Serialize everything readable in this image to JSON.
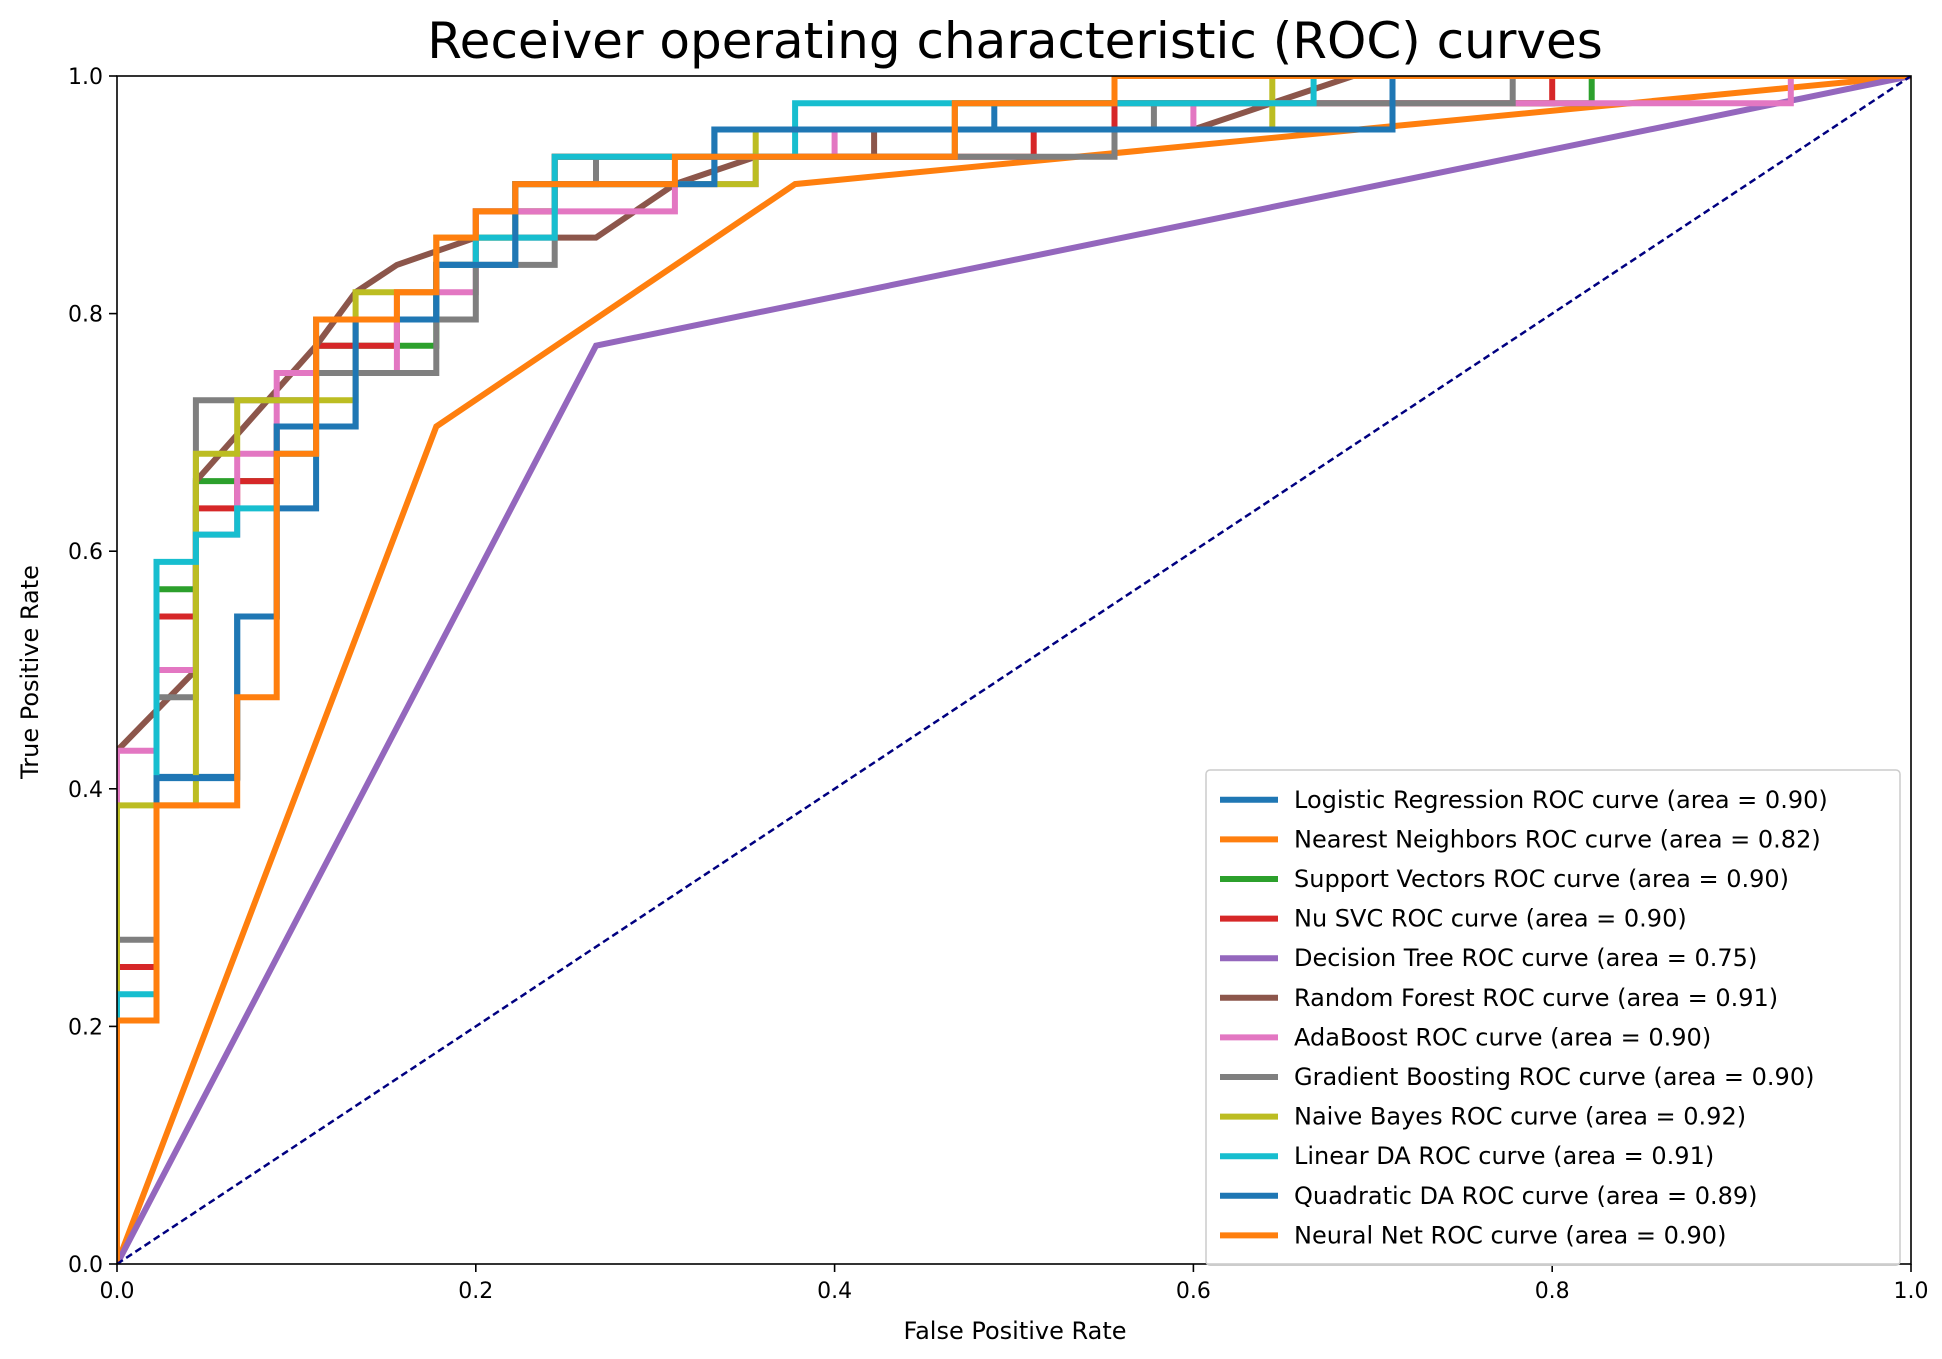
{
  "chart_data": {
    "type": "line",
    "title": "Receiver operating characteristic (ROC) curves",
    "xlabel": "False Positive Rate",
    "ylabel": "True Positive Rate",
    "xlim": [
      0.0,
      1.0
    ],
    "ylim": [
      0.0,
      1.0
    ],
    "xticks": [
      "0.0",
      "0.2",
      "0.4",
      "0.6",
      "0.8",
      "1.0"
    ],
    "yticks": [
      "0.0",
      "0.2",
      "0.4",
      "0.6",
      "0.8",
      "1.0"
    ],
    "grid": false,
    "legend_position": "lower-right",
    "diagonal": {
      "color": "#000080",
      "style": "dashed",
      "points": [
        [
          0,
          0
        ],
        [
          1,
          1
        ]
      ]
    },
    "series": [
      {
        "name": "Logistic Regression ROC curve (area = 0.90)",
        "color": "#1f77b4",
        "points": [
          [
            0,
            0
          ],
          [
            0,
            0.205
          ],
          [
            0.022,
            0.205
          ],
          [
            0.022,
            0.41
          ],
          [
            0.067,
            0.41
          ],
          [
            0.067,
            0.545
          ],
          [
            0.089,
            0.545
          ],
          [
            0.089,
            0.636
          ],
          [
            0.111,
            0.636
          ],
          [
            0.111,
            0.705
          ],
          [
            0.133,
            0.705
          ],
          [
            0.133,
            0.795
          ],
          [
            0.178,
            0.795
          ],
          [
            0.178,
            0.841
          ],
          [
            0.222,
            0.841
          ],
          [
            0.222,
            0.909
          ],
          [
            0.333,
            0.909
          ],
          [
            0.333,
            0.955
          ],
          [
            0.489,
            0.955
          ],
          [
            0.489,
            0.977
          ],
          [
            0.556,
            0.977
          ],
          [
            0.556,
            1.0
          ],
          [
            1.0,
            1.0
          ]
        ]
      },
      {
        "name": "Nearest Neighbors ROC curve (area = 0.82)",
        "color": "#ff7f0e",
        "points": [
          [
            0,
            0
          ],
          [
            0.178,
            0.705
          ],
          [
            0.378,
            0.909
          ],
          [
            1.0,
            1.0
          ]
        ]
      },
      {
        "name": "Support Vectors ROC curve (area = 0.90)",
        "color": "#2ca02c",
        "points": [
          [
            0,
            0
          ],
          [
            0,
            0.25
          ],
          [
            0.022,
            0.25
          ],
          [
            0.022,
            0.568
          ],
          [
            0.044,
            0.568
          ],
          [
            0.044,
            0.659
          ],
          [
            0.089,
            0.659
          ],
          [
            0.089,
            0.705
          ],
          [
            0.111,
            0.705
          ],
          [
            0.111,
            0.773
          ],
          [
            0.178,
            0.773
          ],
          [
            0.178,
            0.841
          ],
          [
            0.2,
            0.841
          ],
          [
            0.2,
            0.886
          ],
          [
            0.244,
            0.886
          ],
          [
            0.244,
            0.932
          ],
          [
            0.467,
            0.932
          ],
          [
            0.467,
            0.977
          ],
          [
            0.822,
            0.977
          ],
          [
            0.822,
            1.0
          ],
          [
            1.0,
            1.0
          ]
        ]
      },
      {
        "name": "Nu SVC ROC curve (area = 0.90)",
        "color": "#d62728",
        "points": [
          [
            0,
            0
          ],
          [
            0,
            0.25
          ],
          [
            0.022,
            0.25
          ],
          [
            0.022,
            0.545
          ],
          [
            0.044,
            0.545
          ],
          [
            0.044,
            0.636
          ],
          [
            0.067,
            0.636
          ],
          [
            0.067,
            0.659
          ],
          [
            0.089,
            0.659
          ],
          [
            0.089,
            0.705
          ],
          [
            0.111,
            0.705
          ],
          [
            0.111,
            0.773
          ],
          [
            0.156,
            0.773
          ],
          [
            0.156,
            0.795
          ],
          [
            0.178,
            0.795
          ],
          [
            0.178,
            0.841
          ],
          [
            0.2,
            0.841
          ],
          [
            0.2,
            0.886
          ],
          [
            0.244,
            0.886
          ],
          [
            0.244,
            0.932
          ],
          [
            0.489,
            0.932
          ],
          [
            0.511,
            0.932
          ],
          [
            0.511,
            0.955
          ],
          [
            0.556,
            0.955
          ],
          [
            0.556,
            0.977
          ],
          [
            0.8,
            0.977
          ],
          [
            0.8,
            1.0
          ],
          [
            1.0,
            1.0
          ]
        ]
      },
      {
        "name": "Decision Tree ROC curve (area = 0.75)",
        "color": "#9467bd",
        "points": [
          [
            0,
            0
          ],
          [
            0.267,
            0.773
          ],
          [
            1.0,
            1.0
          ]
        ]
      },
      {
        "name": "Random Forest ROC curve (area = 0.91)",
        "color": "#8c564b",
        "points": [
          [
            0,
            0.432
          ],
          [
            0.044,
            0.5
          ],
          [
            0.044,
            0.659
          ],
          [
            0.111,
            0.773
          ],
          [
            0.133,
            0.818
          ],
          [
            0.156,
            0.841
          ],
          [
            0.2,
            0.864
          ],
          [
            0.267,
            0.864
          ],
          [
            0.311,
            0.909
          ],
          [
            0.356,
            0.932
          ],
          [
            0.422,
            0.932
          ],
          [
            0.422,
            0.955
          ],
          [
            0.6,
            0.955
          ],
          [
            0.689,
            1.0
          ],
          [
            1.0,
            1.0
          ]
        ]
      },
      {
        "name": "AdaBoost ROC curve (area = 0.90)",
        "color": "#e377c2",
        "points": [
          [
            0,
            0
          ],
          [
            0,
            0.432
          ],
          [
            0.022,
            0.432
          ],
          [
            0.022,
            0.5
          ],
          [
            0.044,
            0.5
          ],
          [
            0.044,
            0.614
          ],
          [
            0.067,
            0.614
          ],
          [
            0.067,
            0.682
          ],
          [
            0.089,
            0.682
          ],
          [
            0.089,
            0.75
          ],
          [
            0.156,
            0.75
          ],
          [
            0.156,
            0.818
          ],
          [
            0.2,
            0.818
          ],
          [
            0.2,
            0.886
          ],
          [
            0.311,
            0.886
          ],
          [
            0.311,
            0.909
          ],
          [
            0.356,
            0.909
          ],
          [
            0.356,
            0.932
          ],
          [
            0.4,
            0.932
          ],
          [
            0.4,
            0.955
          ],
          [
            0.6,
            0.955
          ],
          [
            0.6,
            0.977
          ],
          [
            0.933,
            0.977
          ],
          [
            0.933,
            1.0
          ],
          [
            1.0,
            1.0
          ]
        ]
      },
      {
        "name": "Gradient Boosting ROC curve (area = 0.90)",
        "color": "#7f7f7f",
        "points": [
          [
            0,
            0
          ],
          [
            0,
            0.273
          ],
          [
            0.022,
            0.273
          ],
          [
            0.022,
            0.477
          ],
          [
            0.044,
            0.477
          ],
          [
            0.044,
            0.727
          ],
          [
            0.111,
            0.727
          ],
          [
            0.111,
            0.75
          ],
          [
            0.178,
            0.75
          ],
          [
            0.178,
            0.795
          ],
          [
            0.2,
            0.795
          ],
          [
            0.2,
            0.841
          ],
          [
            0.244,
            0.841
          ],
          [
            0.244,
            0.909
          ],
          [
            0.267,
            0.909
          ],
          [
            0.267,
            0.932
          ],
          [
            0.556,
            0.932
          ],
          [
            0.556,
            0.955
          ],
          [
            0.578,
            0.955
          ],
          [
            0.578,
            0.977
          ],
          [
            0.778,
            0.977
          ],
          [
            0.778,
            1.0
          ],
          [
            1.0,
            1.0
          ]
        ]
      },
      {
        "name": "Naive Bayes ROC curve (area = 0.92)",
        "color": "#bcbd22",
        "points": [
          [
            0,
            0
          ],
          [
            0,
            0.386
          ],
          [
            0.044,
            0.386
          ],
          [
            0.044,
            0.682
          ],
          [
            0.067,
            0.682
          ],
          [
            0.067,
            0.727
          ],
          [
            0.133,
            0.727
          ],
          [
            0.133,
            0.818
          ],
          [
            0.178,
            0.818
          ],
          [
            0.178,
            0.864
          ],
          [
            0.222,
            0.864
          ],
          [
            0.222,
            0.909
          ],
          [
            0.356,
            0.909
          ],
          [
            0.356,
            0.955
          ],
          [
            0.644,
            0.955
          ],
          [
            0.644,
            1.0
          ],
          [
            1.0,
            1.0
          ]
        ]
      },
      {
        "name": "Linear DA ROC curve (area = 0.91)",
        "color": "#17becf",
        "points": [
          [
            0,
            0
          ],
          [
            0,
            0.227
          ],
          [
            0.022,
            0.227
          ],
          [
            0.022,
            0.591
          ],
          [
            0.044,
            0.591
          ],
          [
            0.044,
            0.614
          ],
          [
            0.067,
            0.614
          ],
          [
            0.067,
            0.636
          ],
          [
            0.089,
            0.636
          ],
          [
            0.089,
            0.682
          ],
          [
            0.111,
            0.682
          ],
          [
            0.111,
            0.795
          ],
          [
            0.178,
            0.795
          ],
          [
            0.178,
            0.841
          ],
          [
            0.2,
            0.841
          ],
          [
            0.2,
            0.864
          ],
          [
            0.244,
            0.864
          ],
          [
            0.244,
            0.932
          ],
          [
            0.311,
            0.932
          ],
          [
            0.378,
            0.932
          ],
          [
            0.378,
            0.977
          ],
          [
            0.667,
            0.977
          ],
          [
            0.667,
            1.0
          ],
          [
            1.0,
            1.0
          ]
        ]
      },
      {
        "name": "Quadratic DA ROC curve (area = 0.89)",
        "color": "#1f77b4",
        "points": [
          [
            0,
            0
          ],
          [
            0,
            0.205
          ],
          [
            0.022,
            0.205
          ],
          [
            0.022,
            0.409
          ],
          [
            0.067,
            0.409
          ],
          [
            0.067,
            0.545
          ],
          [
            0.089,
            0.545
          ],
          [
            0.089,
            0.614
          ],
          [
            0.089,
            0.705
          ],
          [
            0.133,
            0.705
          ],
          [
            0.133,
            0.795
          ],
          [
            0.178,
            0.795
          ],
          [
            0.178,
            0.841
          ],
          [
            0.222,
            0.841
          ],
          [
            0.222,
            0.909
          ],
          [
            0.333,
            0.909
          ],
          [
            0.333,
            0.955
          ],
          [
            0.711,
            0.955
          ],
          [
            0.711,
            1.0
          ],
          [
            1.0,
            1.0
          ]
        ]
      },
      {
        "name": "Neural Net ROC curve (area = 0.90)",
        "color": "#ff7f0e",
        "points": [
          [
            0,
            0
          ],
          [
            0,
            0.205
          ],
          [
            0.022,
            0.205
          ],
          [
            0.022,
            0.386
          ],
          [
            0.067,
            0.386
          ],
          [
            0.067,
            0.477
          ],
          [
            0.089,
            0.477
          ],
          [
            0.089,
            0.682
          ],
          [
            0.111,
            0.682
          ],
          [
            0.111,
            0.795
          ],
          [
            0.156,
            0.795
          ],
          [
            0.156,
            0.818
          ],
          [
            0.178,
            0.818
          ],
          [
            0.178,
            0.864
          ],
          [
            0.2,
            0.864
          ],
          [
            0.2,
            0.886
          ],
          [
            0.222,
            0.886
          ],
          [
            0.222,
            0.909
          ],
          [
            0.311,
            0.909
          ],
          [
            0.311,
            0.932
          ],
          [
            0.467,
            0.932
          ],
          [
            0.467,
            0.977
          ],
          [
            0.556,
            0.977
          ],
          [
            0.556,
            1.0
          ],
          [
            1.0,
            1.0
          ]
        ]
      }
    ]
  }
}
